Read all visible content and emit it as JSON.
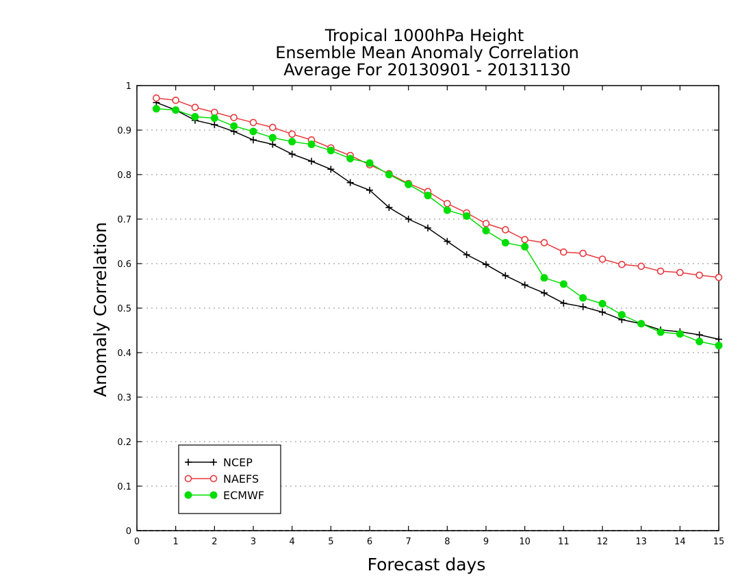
{
  "chart_data": {
    "type": "line",
    "title_lines": [
      "Tropical 1000hPa Height",
      "Ensemble Mean Anomaly Correlation",
      "Average For 20130901 - 20131130"
    ],
    "xlabel": "Forecast days",
    "ylabel": "Anomaly Correlation",
    "xlim": [
      0,
      15
    ],
    "ylim": [
      0,
      1
    ],
    "x_ticks": [
      "0",
      "1",
      "2",
      "3",
      "4",
      "5",
      "6",
      "7",
      "8",
      "9",
      "10",
      "11",
      "12",
      "13",
      "14",
      "15"
    ],
    "y_ticks": [
      "0",
      "0.1",
      "0.2",
      "0.3",
      "0.4",
      "0.5",
      "0.6",
      "0.7",
      "0.8",
      "0.9",
      "1"
    ],
    "grid": "dotted horizontal",
    "legend_position": "bottom-left",
    "x": [
      0.5,
      1,
      1.5,
      2,
      2.5,
      3,
      3.5,
      4,
      4.5,
      5,
      5.5,
      6,
      6.5,
      7,
      7.5,
      8,
      8.5,
      9,
      9.5,
      10,
      10.5,
      11,
      11.5,
      12,
      12.5,
      13,
      13.5,
      14,
      14.5,
      15
    ],
    "series": [
      {
        "name": "NCEP",
        "color": "#000000",
        "marker": "plus",
        "values": [
          0.962,
          0.945,
          0.922,
          0.912,
          0.897,
          0.878,
          0.868,
          0.846,
          0.83,
          0.812,
          0.782,
          0.765,
          0.726,
          0.7,
          0.68,
          0.65,
          0.62,
          0.598,
          0.573,
          0.552,
          0.534,
          0.511,
          0.503,
          0.491,
          0.474,
          0.465,
          0.451,
          0.447,
          0.44,
          0.43
        ]
      },
      {
        "name": "NAEFS",
        "color": "#e8383d",
        "marker": "open-circle",
        "values": [
          0.972,
          0.967,
          0.951,
          0.94,
          0.928,
          0.917,
          0.906,
          0.891,
          0.878,
          0.86,
          0.843,
          0.822,
          0.802,
          0.78,
          0.762,
          0.735,
          0.714,
          0.69,
          0.676,
          0.654,
          0.647,
          0.626,
          0.623,
          0.61,
          0.598,
          0.594,
          0.583,
          0.58,
          0.574,
          0.569
        ]
      },
      {
        "name": "ECMWF",
        "color": "#00dd00",
        "marker": "filled-circle",
        "values": [
          0.948,
          0.945,
          0.93,
          0.927,
          0.909,
          0.897,
          0.883,
          0.874,
          0.868,
          0.854,
          0.836,
          0.826,
          0.8,
          0.778,
          0.753,
          0.72,
          0.707,
          0.674,
          0.647,
          0.638,
          0.568,
          0.554,
          0.523,
          0.51,
          0.485,
          0.465,
          0.446,
          0.442,
          0.425,
          0.416
        ]
      }
    ]
  }
}
